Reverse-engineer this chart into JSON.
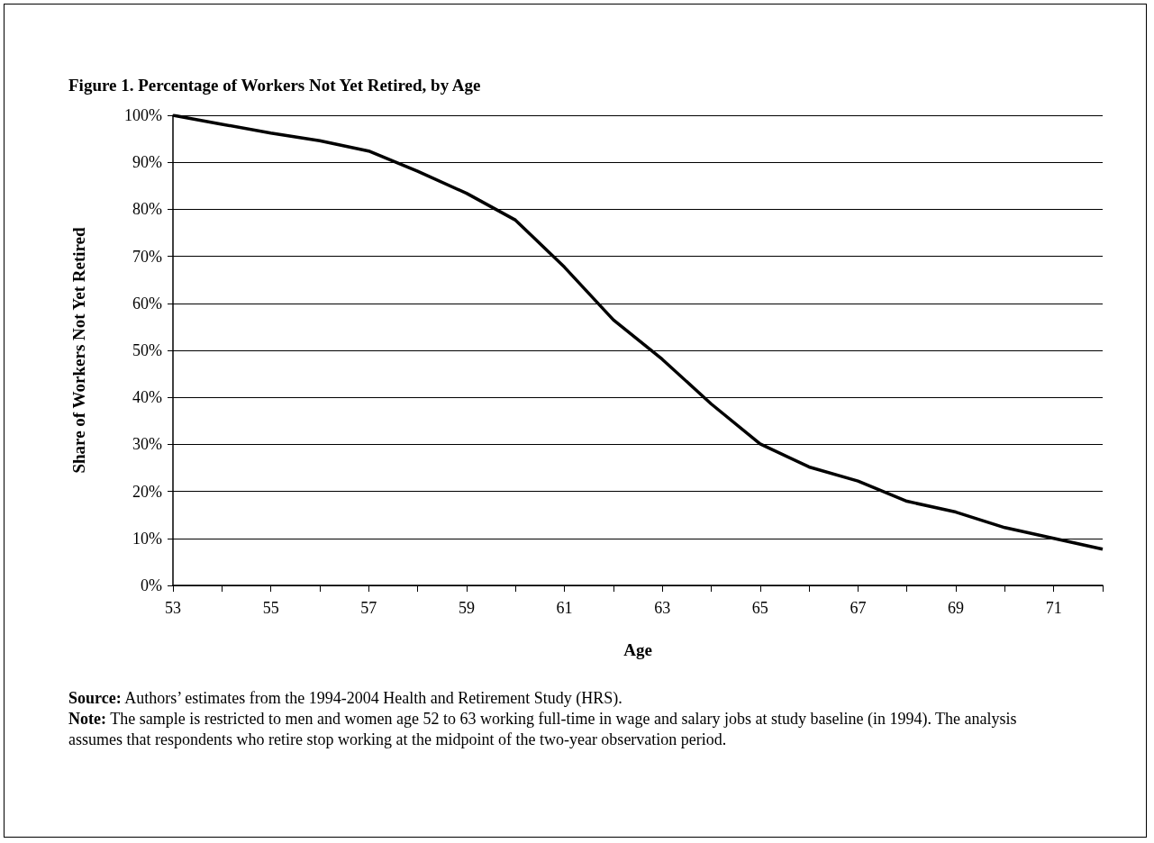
{
  "chart_data": {
    "type": "line",
    "title": "Figure 1. Percentage of Workers Not Yet Retired, by Age",
    "xlabel": "Age",
    "ylabel": "Share of Workers Not Yet Retired",
    "x": [
      53,
      54,
      55,
      56,
      57,
      58,
      59,
      60,
      61,
      62,
      63,
      64,
      65,
      66,
      67,
      68,
      69,
      70,
      71,
      72
    ],
    "series": [
      {
        "color": "#000000",
        "values": [
          100,
          98.1,
          96.2,
          94.6,
          92.4,
          88.1,
          83.4,
          77.7,
          67.7,
          56.5,
          48.1,
          38.6,
          30.1,
          25.2,
          22.2,
          17.9,
          15.6,
          12.3,
          10.0,
          7.7
        ]
      }
    ],
    "xlim": [
      53,
      72
    ],
    "xticks": [
      53,
      {
        "value": 54,
        "label": null
      },
      55,
      {
        "value": 56,
        "label": null
      },
      57,
      {
        "value": 58,
        "label": null
      },
      59,
      {
        "value": 60,
        "label": null
      },
      61,
      {
        "value": 62,
        "label": null
      },
      63,
      {
        "value": 64,
        "label": null
      },
      65,
      {
        "value": 66,
        "label": null
      },
      67,
      {
        "value": 68,
        "label": null
      },
      69,
      {
        "value": 70,
        "label": null
      },
      71,
      {
        "value": 72,
        "label": null
      }
    ],
    "ylim": [
      0,
      100
    ],
    "yticks": [
      {
        "value": 0,
        "label": "0%"
      },
      {
        "value": 10,
        "label": "10%"
      },
      {
        "value": 20,
        "label": "20%"
      },
      {
        "value": 30,
        "label": "30%"
      },
      {
        "value": 40,
        "label": "40%"
      },
      {
        "value": 50,
        "label": "50%"
      },
      {
        "value": 60,
        "label": "60%"
      },
      {
        "value": 70,
        "label": "70%"
      },
      {
        "value": 80,
        "label": "80%"
      },
      {
        "value": 90,
        "label": "90%"
      },
      {
        "value": 100,
        "label": "100%"
      }
    ],
    "grid": "y",
    "marker": "none",
    "line_style": "solid",
    "annotations": [
      "Source: Authors’ estimates from the 1994-2004 Health and Retirement Study (HRS).",
      "Note: The sample is restricted to men and women age 52 to 63 working full-time in wage and salary jobs at study baseline (in 1994). The analysis assumes that respondents who retire stop working at the midpoint of the two-year observation period."
    ]
  }
}
